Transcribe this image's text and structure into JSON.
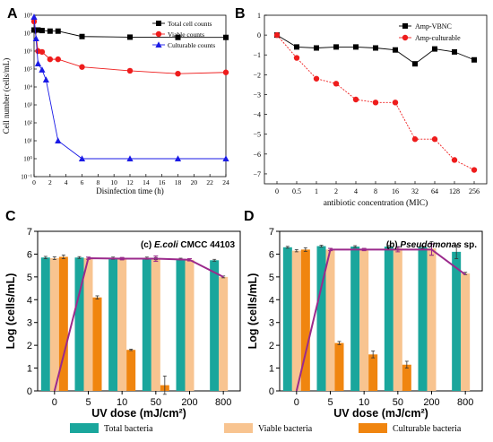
{
  "panels": {
    "A": {
      "letter": "A"
    },
    "B": {
      "letter": "B"
    },
    "C": {
      "letter": "C"
    },
    "D": {
      "letter": "D"
    }
  },
  "shared_legend": [
    {
      "name": "Total bacteria",
      "color": "#1aa69c"
    },
    {
      "name": "Viable bacteria",
      "color": "#f8c490"
    },
    {
      "name": "Culturable bacteria",
      "color": "#f0850f"
    }
  ],
  "chart_data": [
    {
      "id": "A",
      "type": "line",
      "xlabel": "Disinfection time (h)",
      "ylabel": "Cell number (cells/mL)",
      "xlim": [
        0,
        24
      ],
      "xticks": [
        0,
        2,
        4,
        6,
        8,
        10,
        12,
        14,
        16,
        18,
        20,
        22,
        24
      ],
      "yscale": "log",
      "ylim": [
        0.1,
        100000000
      ],
      "ytick_exponents": [
        -1,
        0,
        1,
        2,
        3,
        4,
        5,
        6,
        7,
        8
      ],
      "legend_position": "top-right",
      "series": [
        {
          "name": "Total cell counts",
          "color": "#000000",
          "marker": "square",
          "x": [
            0,
            0.5,
            1,
            2,
            3,
            6,
            12,
            18,
            24
          ],
          "y": [
            15000000,
            15000000,
            14000000,
            13000000,
            13000000,
            6500000,
            6000000,
            5800000,
            5800000
          ]
        },
        {
          "name": "Viable counts",
          "color": "#ee1c1c",
          "marker": "circle",
          "x": [
            0,
            0.5,
            1,
            2,
            3,
            6,
            12,
            18,
            24
          ],
          "y": [
            45000000,
            1000000,
            900000,
            350000,
            350000,
            130000,
            80000,
            55000,
            65000
          ]
        },
        {
          "name": "Culturable counts",
          "color": "#1a1ae6",
          "marker": "triangle",
          "x": [
            0,
            0.25,
            0.5,
            1,
            1.5,
            3,
            6,
            12,
            18,
            24
          ],
          "y": [
            80000000,
            5000000,
            200000,
            90000,
            25000,
            10,
            1,
            1,
            1,
            1
          ]
        }
      ]
    },
    {
      "id": "B",
      "type": "line",
      "xlabel": "antibiotic concentration (MIC)",
      "categories": [
        "0",
        "0.5",
        "1",
        "2",
        "4",
        "8",
        "16",
        "32",
        "64",
        "128",
        "256"
      ],
      "ylim": [
        -7.5,
        1
      ],
      "yticks": [
        1,
        0,
        -1,
        -2,
        -3,
        -4,
        -5,
        -6,
        -7
      ],
      "legend_position": "top-right",
      "series": [
        {
          "name": "Amp-VBNC",
          "color": "#000000",
          "marker": "square",
          "values": [
            0,
            -0.6,
            -0.65,
            -0.6,
            -0.6,
            -0.65,
            -0.75,
            -1.45,
            -0.7,
            -0.85,
            -1.25
          ]
        },
        {
          "name": "Amp-culturable",
          "color": "#ee1c1c",
          "marker": "circle",
          "values": [
            0,
            -1.15,
            -2.2,
            -2.45,
            -3.25,
            -3.4,
            -3.4,
            -5.25,
            -5.25,
            -6.3,
            -6.8
          ]
        }
      ]
    },
    {
      "id": "C",
      "type": "bar",
      "annotation_prefix": "(c) ",
      "annotation_species": "E.coli",
      "annotation_strain": " CMCC 44103",
      "xlabel": "UV dose (mJ/cm²)",
      "ylabel": "Log (cells/mL)",
      "categories": [
        "0",
        "5",
        "10",
        "50",
        "200",
        "800"
      ],
      "ylim": [
        0,
        7
      ],
      "yticks": [
        0,
        1,
        2,
        3,
        4,
        5,
        6,
        7
      ],
      "series": [
        {
          "name": "Total bacteria",
          "values": [
            5.85,
            5.85,
            5.82,
            5.82,
            5.78,
            5.73
          ],
          "errors": [
            0.05,
            0.04,
            0.05,
            0.05,
            0.04,
            0.04
          ]
        },
        {
          "name": "Viable bacteria",
          "values": [
            5.82,
            5.82,
            5.8,
            5.8,
            5.75,
            5.0
          ],
          "errors": [
            0.06,
            0.04,
            0.05,
            0.05,
            0.05,
            0.04
          ]
        },
        {
          "name": "Culturable bacteria",
          "values": [
            5.88,
            4.1,
            1.8,
            0.25,
            0,
            0
          ],
          "errors": [
            0.08,
            0.07,
            0.03,
            0.4,
            0,
            0
          ]
        }
      ],
      "trend": {
        "color": "#9b2a8c",
        "values": [
          0,
          5.82,
          5.8,
          5.8,
          5.75,
          5.0
        ],
        "errors": [
          0,
          0.05,
          0.05,
          0.12,
          0.05,
          0
        ]
      }
    },
    {
      "id": "D",
      "type": "bar",
      "annotation_prefix": "(b) ",
      "annotation_species": "Pseudomonas",
      "annotation_strain": " sp.",
      "xlabel": "UV dose (mJ/cm²)",
      "ylabel": "Log (cells/mL)",
      "categories": [
        "0",
        "5",
        "10",
        "50",
        "200",
        "800"
      ],
      "ylim": [
        0,
        7
      ],
      "yticks": [
        0,
        1,
        2,
        3,
        4,
        5,
        6,
        7
      ],
      "series": [
        {
          "name": "Total bacteria",
          "values": [
            6.3,
            6.35,
            6.33,
            6.33,
            6.3,
            6.1
          ],
          "errors": [
            0.04,
            0.04,
            0.04,
            0.05,
            0.05,
            0.3
          ]
        },
        {
          "name": "Viable bacteria",
          "values": [
            6.15,
            6.2,
            6.2,
            6.25,
            6.25,
            5.15
          ],
          "errors": [
            0.05,
            0.05,
            0.05,
            0.08,
            0.3,
            0.05
          ]
        },
        {
          "name": "Culturable bacteria",
          "values": [
            6.2,
            2.1,
            1.6,
            1.15,
            0,
            0
          ],
          "errors": [
            0.08,
            0.07,
            0.15,
            0.15,
            0,
            0
          ]
        }
      ],
      "trend": {
        "color": "#9b2a8c",
        "values": [
          0,
          6.2,
          6.2,
          6.2,
          6.2,
          5.1
        ],
        "errors": [
          0,
          0.05,
          0.05,
          0.1,
          0.25,
          0
        ]
      }
    }
  ]
}
